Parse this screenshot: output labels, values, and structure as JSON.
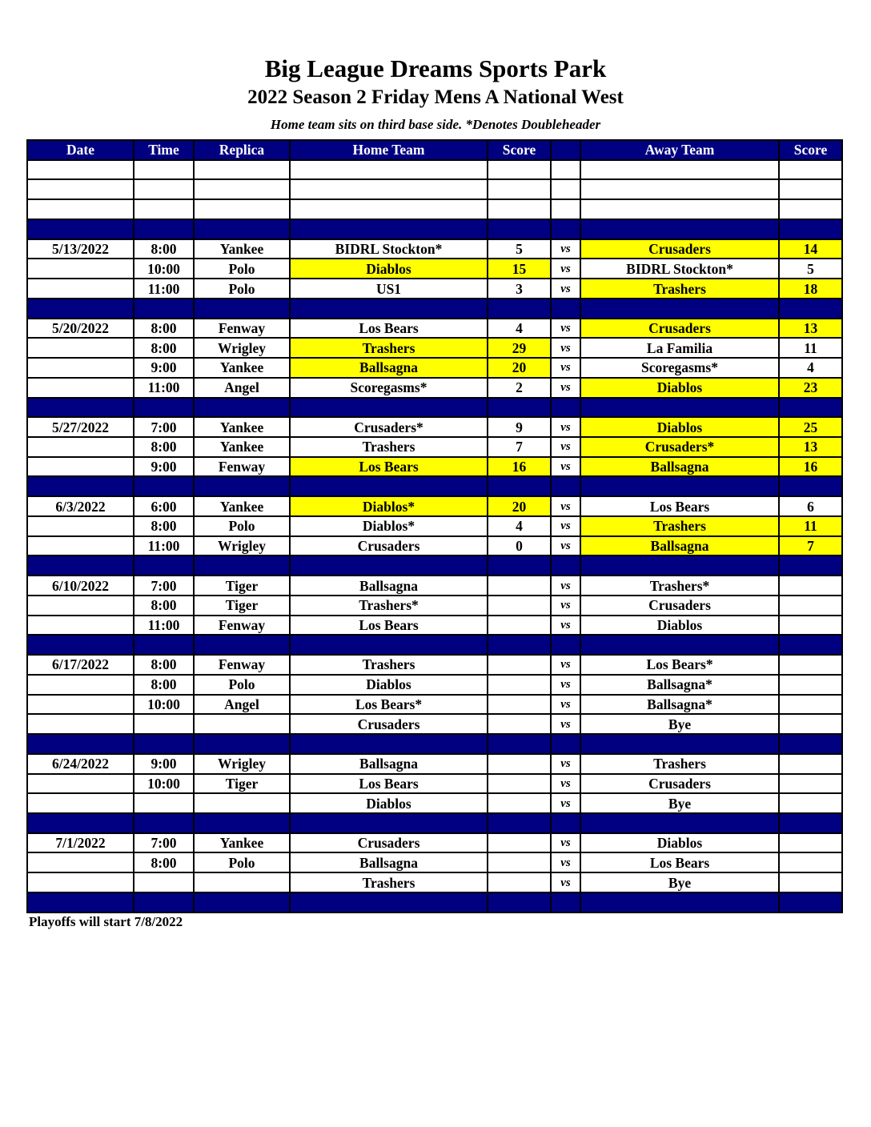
{
  "title": "Big League Dreams Sports Park",
  "subtitle": "2022 Season 2 Friday Mens A National West",
  "note": "Home team sits on third base side.  *Denotes Doubleheader",
  "headers": [
    "Date",
    "Time",
    "Replica",
    "Home Team",
    "Score",
    "",
    "Away Team",
    "Score"
  ],
  "vs_label": "vs",
  "colors": {
    "header_bg": "#000080",
    "winner_highlight": "#ffff00"
  },
  "blank_rows": 3,
  "groups": [
    {
      "date": "5/13/2022",
      "games": [
        {
          "time": "8:00",
          "replica": "Yankee",
          "home": "BIDRL Stockton*",
          "home_score": "5",
          "away": "Crusaders",
          "away_score": "14",
          "winner": "away"
        },
        {
          "time": "10:00",
          "replica": "Polo",
          "home": "Diablos",
          "home_score": "15",
          "away": "BIDRL Stockton*",
          "away_score": "5",
          "winner": "home"
        },
        {
          "time": "11:00",
          "replica": "Polo",
          "home": "US1",
          "home_score": "3",
          "away": "Trashers",
          "away_score": "18",
          "winner": "away"
        }
      ]
    },
    {
      "date": "5/20/2022",
      "games": [
        {
          "time": "8:00",
          "replica": "Fenway",
          "home": "Los Bears",
          "home_score": "4",
          "away": "Crusaders",
          "away_score": "13",
          "winner": "away"
        },
        {
          "time": "8:00",
          "replica": "Wrigley",
          "home": "Trashers",
          "home_score": "29",
          "away": "La Familia",
          "away_score": "11",
          "winner": "home"
        },
        {
          "time": "9:00",
          "replica": "Yankee",
          "home": "Ballsagna",
          "home_score": "20",
          "away": "Scoregasms*",
          "away_score": "4",
          "winner": "home"
        },
        {
          "time": "11:00",
          "replica": "Angel",
          "home": "Scoregasms*",
          "home_score": "2",
          "away": "Diablos",
          "away_score": "23",
          "winner": "away"
        }
      ]
    },
    {
      "date": "5/27/2022",
      "games": [
        {
          "time": "7:00",
          "replica": "Yankee",
          "home": "Crusaders*",
          "home_score": "9",
          "away": "Diablos",
          "away_score": "25",
          "winner": "away"
        },
        {
          "time": "8:00",
          "replica": "Yankee",
          "home": "Trashers",
          "home_score": "7",
          "away": "Crusaders*",
          "away_score": "13",
          "winner": "away"
        },
        {
          "time": "9:00",
          "replica": "Fenway",
          "home": "Los Bears",
          "home_score": "16",
          "away": "Ballsagna",
          "away_score": "16",
          "winner": "both"
        }
      ]
    },
    {
      "date": "6/3/2022",
      "games": [
        {
          "time": "6:00",
          "replica": "Yankee",
          "home": "Diablos*",
          "home_score": "20",
          "away": "Los Bears",
          "away_score": "6",
          "winner": "home"
        },
        {
          "time": "8:00",
          "replica": "Polo",
          "home": "Diablos*",
          "home_score": "4",
          "away": "Trashers",
          "away_score": "11",
          "winner": "away"
        },
        {
          "time": "11:00",
          "replica": "Wrigley",
          "home": "Crusaders",
          "home_score": "0",
          "away": "Ballsagna",
          "away_score": "7",
          "winner": "away"
        }
      ]
    },
    {
      "date": "6/10/2022",
      "games": [
        {
          "time": "7:00",
          "replica": "Tiger",
          "home": "Ballsagna",
          "home_score": "",
          "away": "Trashers*",
          "away_score": "",
          "winner": ""
        },
        {
          "time": "8:00",
          "replica": "Tiger",
          "home": "Trashers*",
          "home_score": "",
          "away": "Crusaders",
          "away_score": "",
          "winner": ""
        },
        {
          "time": "11:00",
          "replica": "Fenway",
          "home": "Los Bears",
          "home_score": "",
          "away": "Diablos",
          "away_score": "",
          "winner": ""
        }
      ]
    },
    {
      "date": "6/17/2022",
      "games": [
        {
          "time": "8:00",
          "replica": "Fenway",
          "home": "Trashers",
          "home_score": "",
          "away": "Los Bears*",
          "away_score": "",
          "winner": ""
        },
        {
          "time": "8:00",
          "replica": "Polo",
          "home": "Diablos",
          "home_score": "",
          "away": "Ballsagna*",
          "away_score": "",
          "winner": ""
        },
        {
          "time": "10:00",
          "replica": "Angel",
          "home": "Los Bears*",
          "home_score": "",
          "away": "Ballsagna*",
          "away_score": "",
          "winner": ""
        },
        {
          "time": "",
          "replica": "",
          "home": "Crusaders",
          "home_score": "",
          "away": "Bye",
          "away_score": "",
          "winner": ""
        }
      ]
    },
    {
      "date": "6/24/2022",
      "games": [
        {
          "time": "9:00",
          "replica": "Wrigley",
          "home": "Ballsagna",
          "home_score": "",
          "away": "Trashers",
          "away_score": "",
          "winner": ""
        },
        {
          "time": "10:00",
          "replica": "Tiger",
          "home": "Los Bears",
          "home_score": "",
          "away": "Crusaders",
          "away_score": "",
          "winner": ""
        },
        {
          "time": "",
          "replica": "",
          "home": "Diablos",
          "home_score": "",
          "away": "Bye",
          "away_score": "",
          "winner": ""
        }
      ]
    },
    {
      "date": "7/1/2022",
      "games": [
        {
          "time": "7:00",
          "replica": "Yankee",
          "home": "Crusaders",
          "home_score": "",
          "away": "Diablos",
          "away_score": "",
          "winner": ""
        },
        {
          "time": "8:00",
          "replica": "Polo",
          "home": "Ballsagna",
          "home_score": "",
          "away": "Los Bears",
          "away_score": "",
          "winner": ""
        },
        {
          "time": "",
          "replica": "",
          "home": "Trashers",
          "home_score": "",
          "away": "Bye",
          "away_score": "",
          "winner": ""
        }
      ]
    }
  ],
  "footer": "Playoffs will start 7/8/2022"
}
